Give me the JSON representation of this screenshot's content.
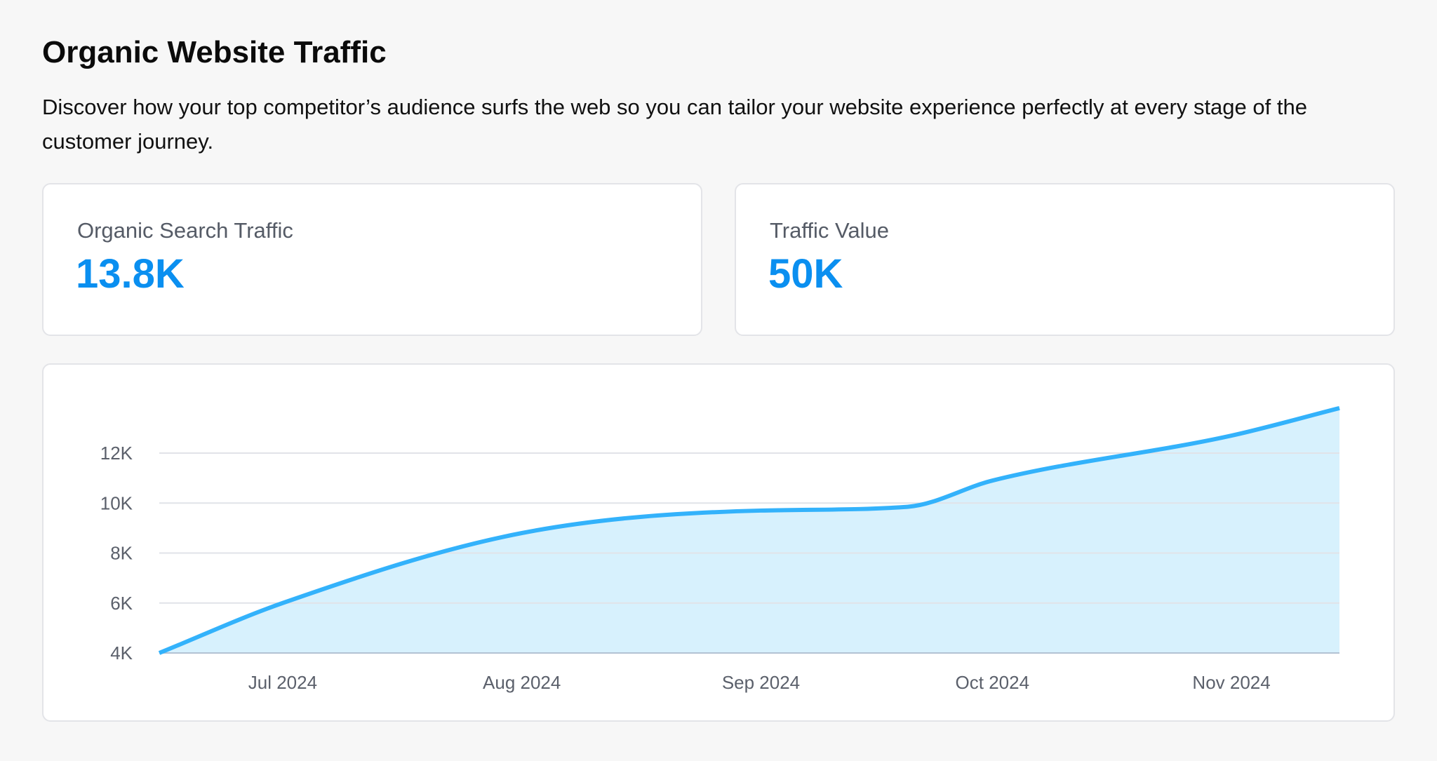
{
  "header": {
    "title": "Organic Website Traffic",
    "description": "Discover how your top competitor’s audience surfs the web so you can tailor your website experience perfectly at every stage of the customer journey."
  },
  "stats": [
    {
      "label": "Organic Search Traffic",
      "value": "13.8K"
    },
    {
      "label": "Traffic Value",
      "value": "50K"
    }
  ],
  "colors": {
    "accent": "#0a8ff0",
    "line": "#33b2fb",
    "fill": "#d3effd",
    "grid": "#e1e3e8"
  },
  "chart_data": {
    "type": "area",
    "title": "",
    "xlabel": "",
    "ylabel": "",
    "x": [
      "2024-06-15",
      "2024-07-01",
      "2024-08-01",
      "2024-09-01",
      "2024-09-20",
      "2024-10-01",
      "2024-11-01",
      "2024-11-15"
    ],
    "values": [
      4000,
      6000,
      8800,
      9700,
      9850,
      10900,
      12700,
      13800
    ],
    "ylim": [
      4000,
      14000
    ],
    "y_ticks": [
      {
        "value": 4000,
        "label": "4K"
      },
      {
        "value": 6000,
        "label": "6K"
      },
      {
        "value": 8000,
        "label": "8K"
      },
      {
        "value": 10000,
        "label": "10K"
      },
      {
        "value": 12000,
        "label": "12K"
      }
    ],
    "x_ticks": [
      {
        "date": "2024-07-01",
        "label": "Jul 2024"
      },
      {
        "date": "2024-08-01",
        "label": "Aug 2024"
      },
      {
        "date": "2024-09-01",
        "label": "Sep 2024"
      },
      {
        "date": "2024-10-01",
        "label": "Oct 2024"
      },
      {
        "date": "2024-11-01",
        "label": "Nov 2024"
      }
    ],
    "grid": true,
    "legend": "none"
  }
}
